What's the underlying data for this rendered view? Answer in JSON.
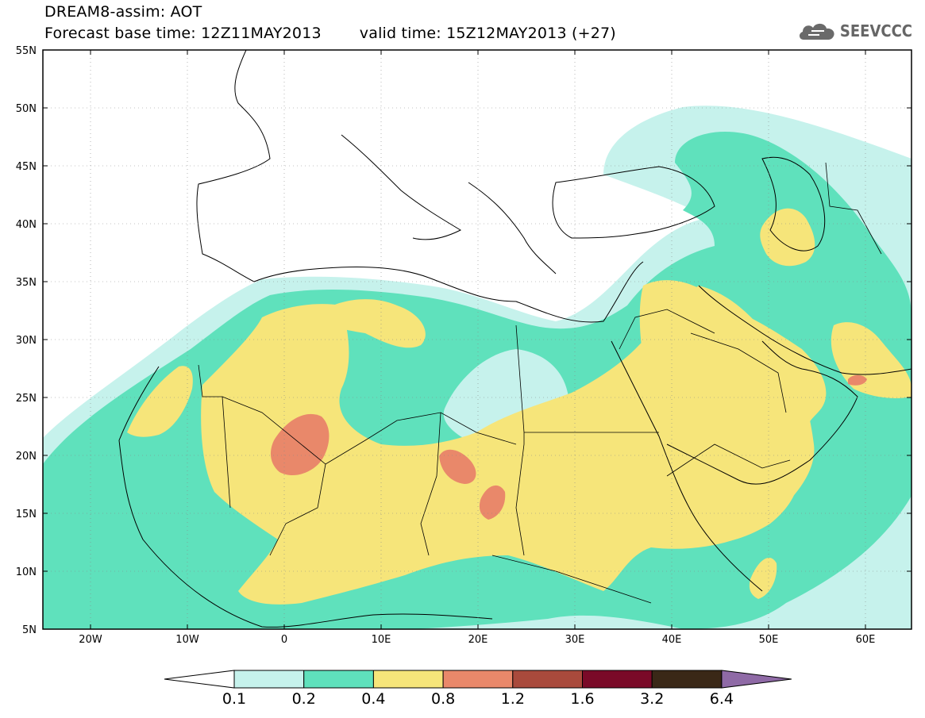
{
  "title": {
    "line1": "DREAM8-assim: AOT",
    "line2_base": "Forecast base time: 12Z11MAY2013",
    "line2_valid": "valid time: 15Z12MAY2013 (+27)"
  },
  "logo": {
    "text": "SEEVCCC",
    "icon": "cloud-logo-icon"
  },
  "axes": {
    "lon_ticks": [
      "20W",
      "10W",
      "0",
      "10E",
      "20E",
      "30E",
      "40E",
      "50E",
      "60E"
    ],
    "lat_ticks": [
      "55N",
      "50N",
      "45N",
      "40N",
      "35N",
      "30N",
      "25N",
      "20N",
      "15N",
      "10N",
      "5N"
    ]
  },
  "legend": {
    "labels": [
      "0.1",
      "0.2",
      "0.4",
      "0.8",
      "1.2",
      "1.6",
      "3.2",
      "6.4"
    ],
    "colors": [
      "#ffffff",
      "#c6f2ec",
      "#5fe1bc",
      "#f6e57a",
      "#e9886a",
      "#a94a3c",
      "#7a0a28",
      "#3a2817",
      "#8f6aa6"
    ]
  },
  "map_colors": {
    "aot_0_1": "#c6f2ec",
    "aot_0_2": "#5fe1bc",
    "aot_0_4": "#f6e57a",
    "aot_0_8": "#e9886a"
  }
}
